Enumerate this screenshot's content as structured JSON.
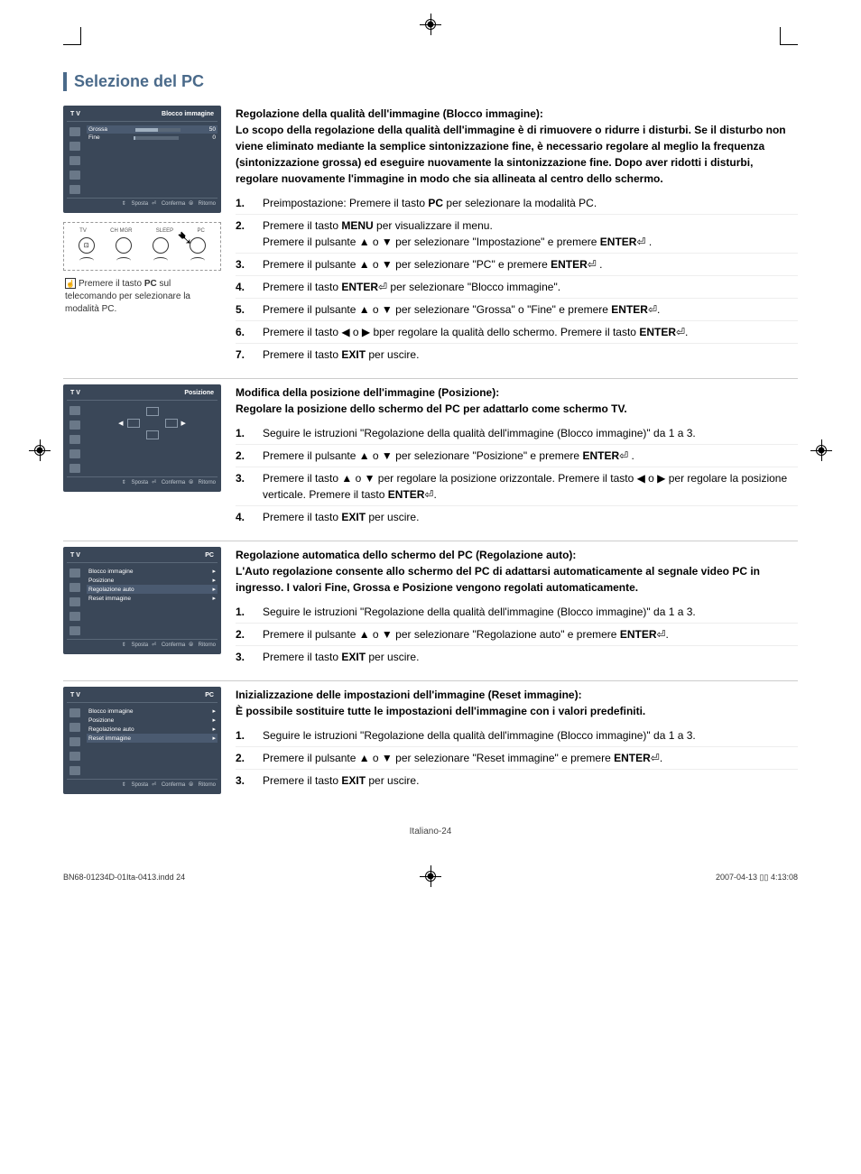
{
  "section_title": "Selezione del PC",
  "osd1": {
    "tv": "T V",
    "title": "Blocco immagine",
    "row1_label": "Grossa",
    "row1_val": "50",
    "row2_label": "Fine",
    "row2_val": "0",
    "footer_move": "Sposta",
    "footer_ok": "Conferma",
    "footer_ret": "Ritorno"
  },
  "remote": {
    "labels": [
      "TV",
      "CH MGR",
      "SLEEP",
      "PC"
    ],
    "caption_prefix": "Premere il tasto ",
    "caption_bold": "PC",
    "caption_suffix": " sul telecomando per selezionare la modalità PC."
  },
  "osd2": {
    "tv": "T V",
    "title": "Posizione",
    "footer_move": "Sposta",
    "footer_ok": "Conferma",
    "footer_ret": "Ritorno"
  },
  "osd3": {
    "tv": "T V",
    "title": "PC",
    "items": [
      "Blocco immagine",
      "Posizione",
      "Regolazione auto",
      "Reset immagine"
    ],
    "footer_move": "Sposta",
    "footer_ok": "Conferma",
    "footer_ret": "Ritorno"
  },
  "osd4": {
    "tv": "T V",
    "title": "PC",
    "items": [
      "Blocco immagine",
      "Posizione",
      "Regolazione auto",
      "Reset immagine"
    ],
    "footer_move": "Sposta",
    "footer_ok": "Conferma",
    "footer_ret": "Ritorno"
  },
  "block1": {
    "heading": "Regolazione della qualità dell'immagine (Blocco immagine):",
    "intro": "Lo scopo della regolazione della qualità dell'immagine è di rimuovere o ridurre i disturbi. Se il disturbo non viene eliminato mediante la semplice sintonizzazione fine, è necessario regolare al meglio la frequenza (sintonizzazione grossa) ed eseguire nuovamente la sintonizzazione fine. Dopo aver ridotti i disturbi, regolare nuovamente l'immagine in modo che sia allineata al centro dello schermo.",
    "steps": [
      {
        "n": "1.",
        "t": "Preimpostazione: Premere il tasto <b>PC</b> per selezionare la modalità PC."
      },
      {
        "n": "2.",
        "t": "Premere il tasto <b>MENU</b> per visualizzare il menu.<br>Premere il pulsante ▲ o ▼ per selezionare \"Impostazione\" e premere <b>ENTER</b>⏎ ."
      },
      {
        "n": "3.",
        "t": "Premere il pulsante ▲ o ▼ per selezionare \"PC\" e premere <b>ENTER</b>⏎ ."
      },
      {
        "n": "4.",
        "t": "Premere il tasto <b>ENTER</b>⏎ per selezionare \"Blocco immagine\"."
      },
      {
        "n": "5.",
        "t": "Premere il pulsante ▲ o ▼ per selezionare \"Grossa\" o \"Fine\" e premere <b>ENTER</b>⏎."
      },
      {
        "n": "6.",
        "t": "Premere il tasto ◀ o ▶ bper regolare la qualità dello schermo. Premere il tasto <b>ENTER</b>⏎."
      },
      {
        "n": "7.",
        "t": "Premere il tasto <b>EXIT</b> per uscire."
      }
    ]
  },
  "block2": {
    "heading": "Modifica della posizione dell'immagine (Posizione):",
    "intro": "Regolare la posizione dello schermo del PC per adattarlo come schermo TV.",
    "steps": [
      {
        "n": "1.",
        "t": "Seguire le istruzioni \"Regolazione della qualità dell'immagine (Blocco immagine)\" da 1 a 3."
      },
      {
        "n": "2.",
        "t": "Premere il pulsante ▲ o ▼ per selezionare \"Posizione\" e premere <b>ENTER</b>⏎ ."
      },
      {
        "n": "3.",
        "t": "Premere il tasto ▲ o ▼ per regolare la posizione orizzontale. Premere il tasto ◀ o ▶ per regolare la posizione verticale. Premere il tasto <b>ENTER</b>⏎."
      },
      {
        "n": "4.",
        "t": "Premere il tasto <b>EXIT</b> per uscire."
      }
    ]
  },
  "block3": {
    "heading": "Regolazione automatica dello schermo del PC (Regolazione auto):",
    "intro": "L'Auto regolazione consente allo schermo del PC di adattarsi automaticamente al segnale video PC in ingresso. I valori Fine, Grossa e Posizione vengono regolati automaticamente.",
    "steps": [
      {
        "n": "1.",
        "t": "Seguire le istruzioni \"Regolazione della qualità dell'immagine (Blocco immagine)\" da 1 a 3."
      },
      {
        "n": "2.",
        "t": "Premere il pulsante ▲ o ▼ per selezionare \"Regolazione auto\" e premere <b>ENTER</b>⏎."
      },
      {
        "n": "3.",
        "t": "Premere il tasto <b>EXIT</b> per uscire."
      }
    ]
  },
  "block4": {
    "heading": "Inizializzazione delle impostazioni dell'immagine (Reset immagine):",
    "intro": "È possibile sostituire tutte le impostazioni dell'immagine con i valori predefiniti.",
    "steps": [
      {
        "n": "1.",
        "t": "Seguire le istruzioni \"Regolazione della qualità dell'immagine (Blocco immagine)\" da 1 a 3."
      },
      {
        "n": "2.",
        "t": "Premere il pulsante ▲ o ▼ per selezionare \"Reset immagine\" e premere <b>ENTER</b>⏎."
      },
      {
        "n": "3.",
        "t": "Premere il tasto <b>EXIT</b> per uscire."
      }
    ]
  },
  "page_label": "Italiano-24",
  "indd_file": "BN68-01234D-01Ita-0413.indd   24",
  "indd_time": "2007-04-13   ▯▯ 4:13:08"
}
